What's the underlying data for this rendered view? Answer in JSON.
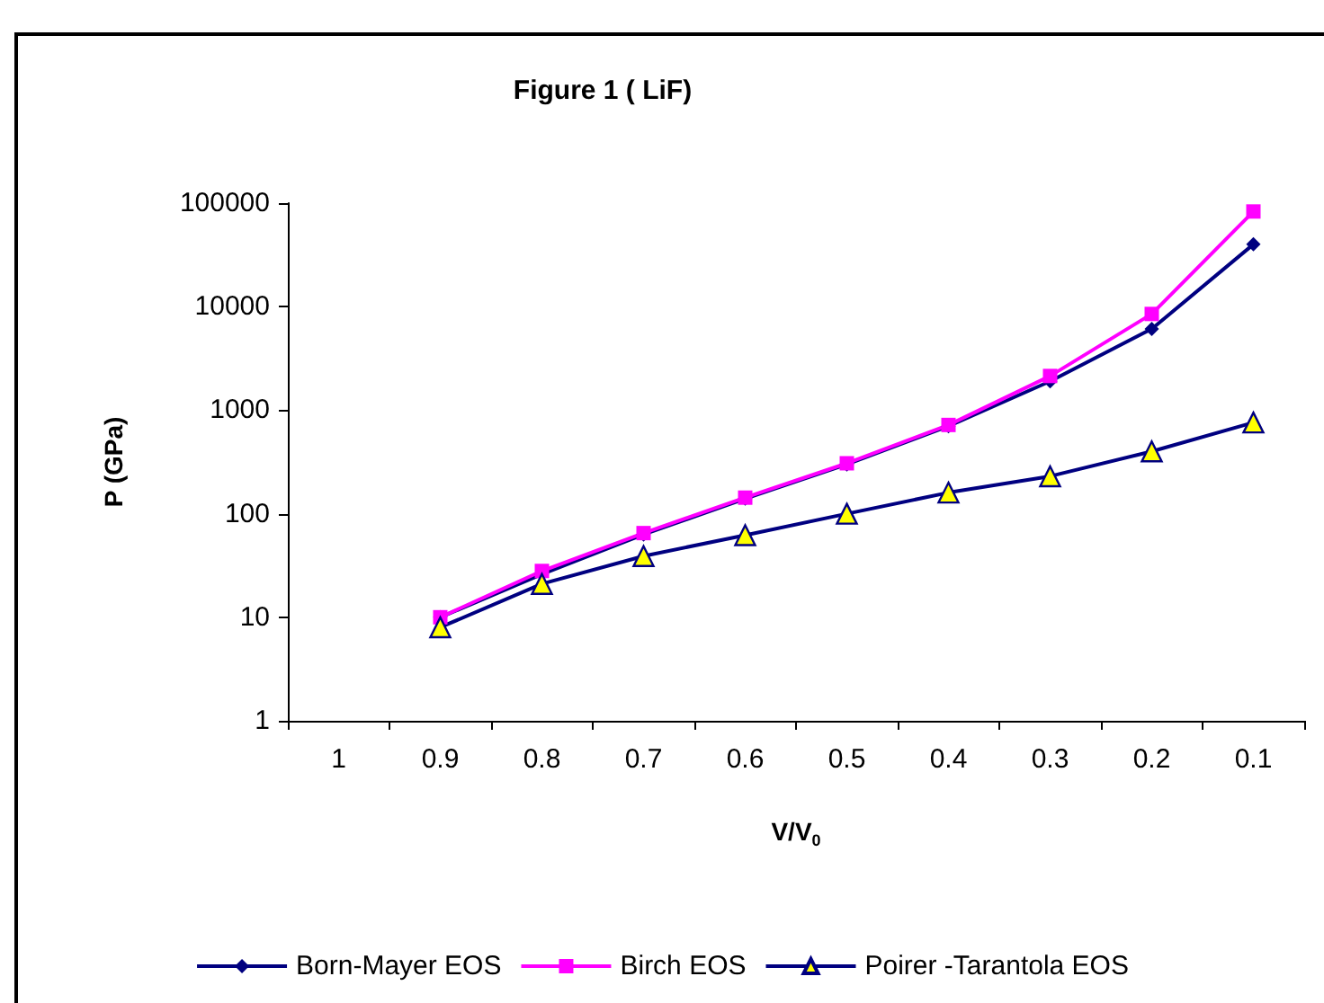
{
  "chart_data": {
    "type": "line",
    "title": "Figure 1 ( LiF)",
    "xlabel": "V/V$_{0}$",
    "ylabel": "P (GPa)",
    "categories": [
      "1",
      "0.9",
      "0.8",
      "0.7",
      "0.6",
      "0.5",
      "0.4",
      "0.3",
      "0.2",
      "0.1"
    ],
    "log": true,
    "ylim": [
      1,
      100000
    ],
    "yticks": [
      1,
      10,
      100,
      1000,
      10000,
      100000
    ],
    "grid": false,
    "legend": "bottom",
    "series": [
      {
        "name": "Born-Mayer EOS",
        "color": "#000080",
        "marker": "diamond",
        "values": [
          null,
          10,
          26,
          63,
          140,
          300,
          700,
          1900,
          6100,
          40000
        ]
      },
      {
        "name": "Birch EOS",
        "color": "#ff00ff",
        "marker": "square",
        "values": [
          null,
          10,
          28,
          65,
          143,
          307,
          720,
          2140,
          8500,
          83000
        ]
      },
      {
        "name": "Poirer -Tarantola EOS",
        "color": "#000080",
        "marker": "triangle",
        "colors": [
          null,
          "#ffff00",
          "#ffff00",
          "#ffff00",
          "#ffff00",
          "#ffff00",
          "#ffff00",
          "#ffff00",
          "#ffff00",
          "#ffff00"
        ],
        "values": [
          null,
          8,
          21,
          39,
          62,
          100,
          160,
          230,
          400,
          760
        ]
      }
    ]
  }
}
